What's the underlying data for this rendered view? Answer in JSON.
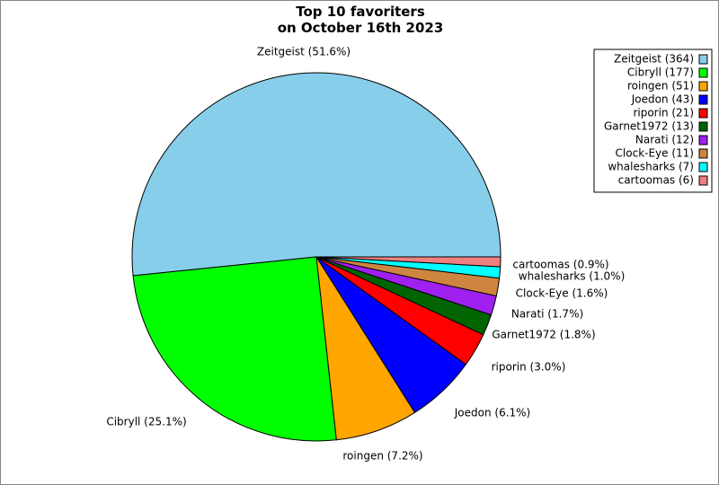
{
  "title_lines": [
    "Top 10 favoriters",
    "on October 16th 2023"
  ],
  "chart_data": {
    "type": "pie",
    "title": "Top 10 favoriters on October 16th 2023",
    "legend_position": "top-right",
    "start_angle_deg": 0,
    "direction": "counterclockwise",
    "slices": [
      {
        "name": "Zeitgeist",
        "value": 364,
        "percent_label": "Zeitgeist (51.6%)",
        "legend_label": "Zeitgeist (364)",
        "color": "#87CEEB"
      },
      {
        "name": "Cibryll",
        "value": 177,
        "percent_label": "Cibryll (25.1%)",
        "legend_label": "Cibryll (177)",
        "color": "#00FF00"
      },
      {
        "name": "roingen",
        "value": 51,
        "percent_label": "roingen (7.2%)",
        "legend_label": "roingen (51)",
        "color": "#FFA500"
      },
      {
        "name": "Joedon",
        "value": 43,
        "percent_label": "Joedon (6.1%)",
        "legend_label": "Joedon (43)",
        "color": "#0000FF"
      },
      {
        "name": "riporin",
        "value": 21,
        "percent_label": "riporin (3.0%)",
        "legend_label": "riporin (21)",
        "color": "#FF0000"
      },
      {
        "name": "Garnet1972",
        "value": 13,
        "percent_label": "Garnet1972 (1.8%)",
        "legend_label": "Garnet1972 (13)",
        "color": "#006400"
      },
      {
        "name": "Narati",
        "value": 12,
        "percent_label": "Narati (1.7%)",
        "legend_label": "Narati (12)",
        "color": "#A020F0"
      },
      {
        "name": "Clock-Eye",
        "value": 11,
        "percent_label": "Clock-Eye (1.6%)",
        "legend_label": "Clock-Eye (11)",
        "color": "#CD853F"
      },
      {
        "name": "whalesharks",
        "value": 7,
        "percent_label": "whalesharks (1.0%)",
        "legend_label": "whalesharks (7)",
        "color": "#00FFFF"
      },
      {
        "name": "cartoomas",
        "value": 6,
        "percent_label": "cartoomas (0.9%)",
        "legend_label": "cartoomas (6)",
        "color": "#F08080"
      }
    ]
  }
}
